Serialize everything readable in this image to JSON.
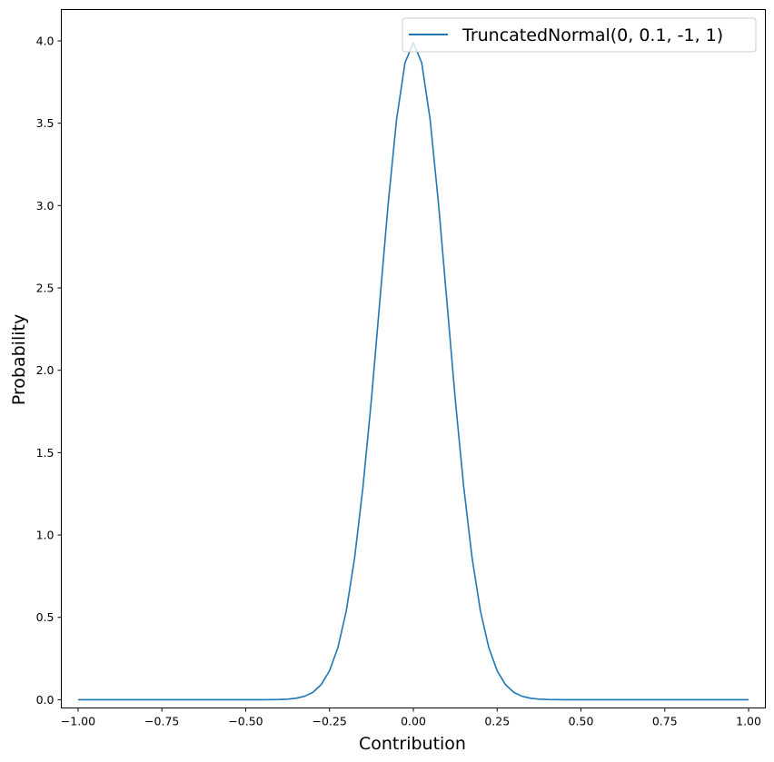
{
  "chart_data": {
    "type": "line",
    "title": "",
    "xlabel": "Contribution",
    "ylabel": "Probability",
    "xlim": [
      -1.05,
      1.05
    ],
    "ylim": [
      -0.05,
      4.19
    ],
    "grid": false,
    "legend_position": "top-right",
    "x_ticks": [
      "−1.00",
      "−0.75",
      "−0.50",
      "−0.25",
      "0.00",
      "0.25",
      "0.50",
      "0.75",
      "1.00"
    ],
    "x_tick_values": [
      -1,
      -0.75,
      -0.5,
      -0.25,
      0,
      0.25,
      0.5,
      0.75,
      1
    ],
    "y_ticks": [
      "0.0",
      "0.5",
      "1.0",
      "1.5",
      "2.0",
      "2.5",
      "3.0",
      "3.5",
      "4.0"
    ],
    "y_tick_values": [
      0,
      0.5,
      1,
      1.5,
      2,
      2.5,
      3,
      3.5,
      4
    ],
    "series": [
      {
        "name": "TruncatedNormal(0, 0.1, -1, 1)",
        "color": "#1f77b4",
        "x": [
          -1,
          -0.75,
          -0.5,
          -0.45,
          -0.4,
          -0.375,
          -0.35,
          -0.325,
          -0.3,
          -0.275,
          -0.25,
          -0.225,
          -0.2,
          -0.175,
          -0.15,
          -0.125,
          -0.1,
          -0.075,
          -0.05,
          -0.025,
          0,
          0.025,
          0.05,
          0.075,
          0.1,
          0.125,
          0.15,
          0.175,
          0.2,
          0.225,
          0.25,
          0.275,
          0.3,
          0.325,
          0.35,
          0.375,
          0.4,
          0.45,
          0.5,
          0.75,
          1
        ],
        "y": [
          0,
          0,
          0,
          0.00016,
          0.00134,
          0.00353,
          0.00873,
          0.0203,
          0.0443,
          0.0909,
          0.175,
          0.317,
          0.54,
          0.863,
          1.295,
          1.826,
          2.42,
          3.011,
          3.521,
          3.867,
          3.989,
          3.867,
          3.521,
          3.011,
          2.42,
          1.826,
          1.295,
          0.863,
          0.54,
          0.317,
          0.175,
          0.0909,
          0.0443,
          0.0203,
          0.00873,
          0.00353,
          0.00134,
          0.00016,
          0,
          0,
          0
        ]
      }
    ]
  }
}
